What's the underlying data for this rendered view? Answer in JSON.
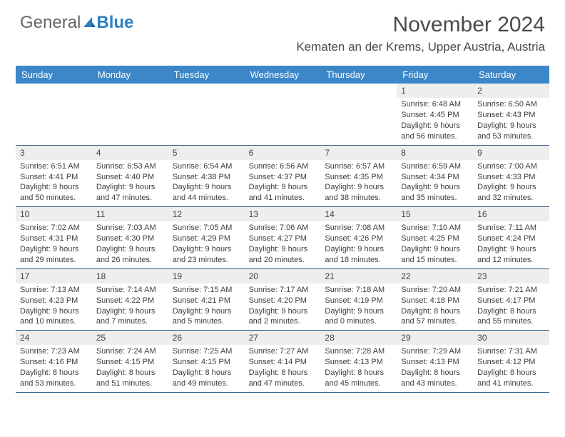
{
  "brand": {
    "part1": "General",
    "part2": "Blue"
  },
  "title": "November 2024",
  "location": "Kematen an der Krems, Upper Austria, Austria",
  "theme": {
    "header_bg": "#3b87c8",
    "header_text": "#ffffff",
    "row_divider": "#2d5e8a",
    "daynum_bg": "#eeeeee",
    "body_text": "#3d3d3d",
    "page_bg": "#ffffff"
  },
  "day_labels": [
    "Sunday",
    "Monday",
    "Tuesday",
    "Wednesday",
    "Thursday",
    "Friday",
    "Saturday"
  ],
  "weeks": [
    [
      {
        "n": "",
        "sunrise": "",
        "sunset": "",
        "daylight": ""
      },
      {
        "n": "",
        "sunrise": "",
        "sunset": "",
        "daylight": ""
      },
      {
        "n": "",
        "sunrise": "",
        "sunset": "",
        "daylight": ""
      },
      {
        "n": "",
        "sunrise": "",
        "sunset": "",
        "daylight": ""
      },
      {
        "n": "",
        "sunrise": "",
        "sunset": "",
        "daylight": ""
      },
      {
        "n": "1",
        "sunrise": "Sunrise: 6:48 AM",
        "sunset": "Sunset: 4:45 PM",
        "daylight": "Daylight: 9 hours and 56 minutes."
      },
      {
        "n": "2",
        "sunrise": "Sunrise: 6:50 AM",
        "sunset": "Sunset: 4:43 PM",
        "daylight": "Daylight: 9 hours and 53 minutes."
      }
    ],
    [
      {
        "n": "3",
        "sunrise": "Sunrise: 6:51 AM",
        "sunset": "Sunset: 4:41 PM",
        "daylight": "Daylight: 9 hours and 50 minutes."
      },
      {
        "n": "4",
        "sunrise": "Sunrise: 6:53 AM",
        "sunset": "Sunset: 4:40 PM",
        "daylight": "Daylight: 9 hours and 47 minutes."
      },
      {
        "n": "5",
        "sunrise": "Sunrise: 6:54 AM",
        "sunset": "Sunset: 4:38 PM",
        "daylight": "Daylight: 9 hours and 44 minutes."
      },
      {
        "n": "6",
        "sunrise": "Sunrise: 6:56 AM",
        "sunset": "Sunset: 4:37 PM",
        "daylight": "Daylight: 9 hours and 41 minutes."
      },
      {
        "n": "7",
        "sunrise": "Sunrise: 6:57 AM",
        "sunset": "Sunset: 4:35 PM",
        "daylight": "Daylight: 9 hours and 38 minutes."
      },
      {
        "n": "8",
        "sunrise": "Sunrise: 6:59 AM",
        "sunset": "Sunset: 4:34 PM",
        "daylight": "Daylight: 9 hours and 35 minutes."
      },
      {
        "n": "9",
        "sunrise": "Sunrise: 7:00 AM",
        "sunset": "Sunset: 4:33 PM",
        "daylight": "Daylight: 9 hours and 32 minutes."
      }
    ],
    [
      {
        "n": "10",
        "sunrise": "Sunrise: 7:02 AM",
        "sunset": "Sunset: 4:31 PM",
        "daylight": "Daylight: 9 hours and 29 minutes."
      },
      {
        "n": "11",
        "sunrise": "Sunrise: 7:03 AM",
        "sunset": "Sunset: 4:30 PM",
        "daylight": "Daylight: 9 hours and 26 minutes."
      },
      {
        "n": "12",
        "sunrise": "Sunrise: 7:05 AM",
        "sunset": "Sunset: 4:29 PM",
        "daylight": "Daylight: 9 hours and 23 minutes."
      },
      {
        "n": "13",
        "sunrise": "Sunrise: 7:06 AM",
        "sunset": "Sunset: 4:27 PM",
        "daylight": "Daylight: 9 hours and 20 minutes."
      },
      {
        "n": "14",
        "sunrise": "Sunrise: 7:08 AM",
        "sunset": "Sunset: 4:26 PM",
        "daylight": "Daylight: 9 hours and 18 minutes."
      },
      {
        "n": "15",
        "sunrise": "Sunrise: 7:10 AM",
        "sunset": "Sunset: 4:25 PM",
        "daylight": "Daylight: 9 hours and 15 minutes."
      },
      {
        "n": "16",
        "sunrise": "Sunrise: 7:11 AM",
        "sunset": "Sunset: 4:24 PM",
        "daylight": "Daylight: 9 hours and 12 minutes."
      }
    ],
    [
      {
        "n": "17",
        "sunrise": "Sunrise: 7:13 AM",
        "sunset": "Sunset: 4:23 PM",
        "daylight": "Daylight: 9 hours and 10 minutes."
      },
      {
        "n": "18",
        "sunrise": "Sunrise: 7:14 AM",
        "sunset": "Sunset: 4:22 PM",
        "daylight": "Daylight: 9 hours and 7 minutes."
      },
      {
        "n": "19",
        "sunrise": "Sunrise: 7:15 AM",
        "sunset": "Sunset: 4:21 PM",
        "daylight": "Daylight: 9 hours and 5 minutes."
      },
      {
        "n": "20",
        "sunrise": "Sunrise: 7:17 AM",
        "sunset": "Sunset: 4:20 PM",
        "daylight": "Daylight: 9 hours and 2 minutes."
      },
      {
        "n": "21",
        "sunrise": "Sunrise: 7:18 AM",
        "sunset": "Sunset: 4:19 PM",
        "daylight": "Daylight: 9 hours and 0 minutes."
      },
      {
        "n": "22",
        "sunrise": "Sunrise: 7:20 AM",
        "sunset": "Sunset: 4:18 PM",
        "daylight": "Daylight: 8 hours and 57 minutes."
      },
      {
        "n": "23",
        "sunrise": "Sunrise: 7:21 AM",
        "sunset": "Sunset: 4:17 PM",
        "daylight": "Daylight: 8 hours and 55 minutes."
      }
    ],
    [
      {
        "n": "24",
        "sunrise": "Sunrise: 7:23 AM",
        "sunset": "Sunset: 4:16 PM",
        "daylight": "Daylight: 8 hours and 53 minutes."
      },
      {
        "n": "25",
        "sunrise": "Sunrise: 7:24 AM",
        "sunset": "Sunset: 4:15 PM",
        "daylight": "Daylight: 8 hours and 51 minutes."
      },
      {
        "n": "26",
        "sunrise": "Sunrise: 7:25 AM",
        "sunset": "Sunset: 4:15 PM",
        "daylight": "Daylight: 8 hours and 49 minutes."
      },
      {
        "n": "27",
        "sunrise": "Sunrise: 7:27 AM",
        "sunset": "Sunset: 4:14 PM",
        "daylight": "Daylight: 8 hours and 47 minutes."
      },
      {
        "n": "28",
        "sunrise": "Sunrise: 7:28 AM",
        "sunset": "Sunset: 4:13 PM",
        "daylight": "Daylight: 8 hours and 45 minutes."
      },
      {
        "n": "29",
        "sunrise": "Sunrise: 7:29 AM",
        "sunset": "Sunset: 4:13 PM",
        "daylight": "Daylight: 8 hours and 43 minutes."
      },
      {
        "n": "30",
        "sunrise": "Sunrise: 7:31 AM",
        "sunset": "Sunset: 4:12 PM",
        "daylight": "Daylight: 8 hours and 41 minutes."
      }
    ]
  ]
}
